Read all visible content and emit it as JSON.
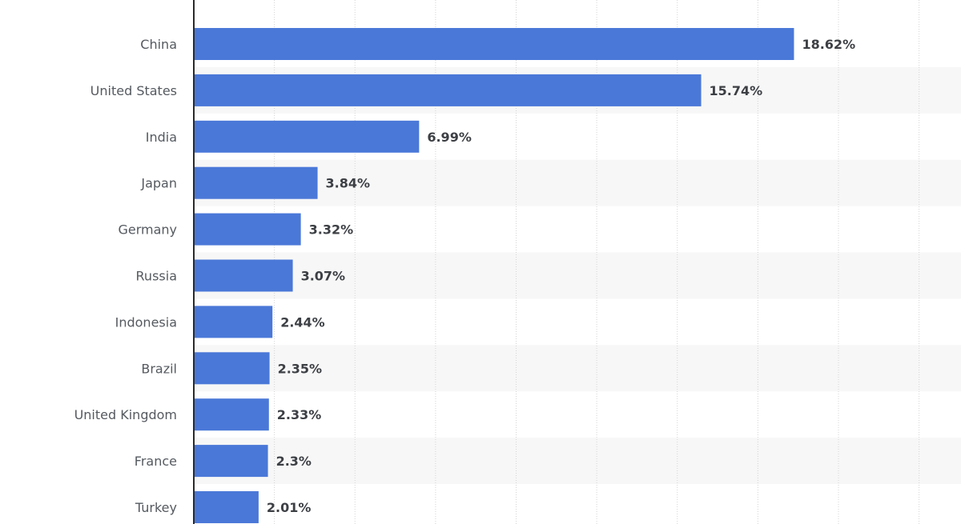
{
  "chart_data": {
    "type": "bar",
    "orientation": "horizontal",
    "categories": [
      "China",
      "United States",
      "India",
      "Japan",
      "Germany",
      "Russia",
      "Indonesia",
      "Brazil",
      "United Kingdom",
      "France",
      "Turkey"
    ],
    "values": [
      18.62,
      15.74,
      6.99,
      3.84,
      3.32,
      3.07,
      2.44,
      2.35,
      2.33,
      2.3,
      2.01
    ],
    "value_labels": [
      "18.62%",
      "15.74%",
      "6.99%",
      "3.84%",
      "3.32%",
      "3.07%",
      "2.44%",
      "2.35%",
      "2.33%",
      "2.3%",
      "2.01%"
    ],
    "xlim": [
      0,
      22.5
    ],
    "x_grid_step": 2.5,
    "grid": true,
    "gridline_style": "dotted",
    "alternating_row_shading": true,
    "colors": {
      "bar": "#4a78d8",
      "row_shade": "#f7f7f7",
      "grid": "#d4d4d4",
      "axis": "#2b2b2b"
    }
  }
}
